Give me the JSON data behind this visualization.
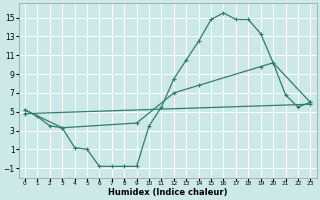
{
  "bg_color": "#cde8e8",
  "grid_color": "#ffffff",
  "line_color": "#2e7d6e",
  "xlabel": "Humidex (Indice chaleur)",
  "xlim": [
    -0.5,
    23.5
  ],
  "ylim": [
    -2,
    16.5
  ],
  "yticks": [
    -1,
    1,
    3,
    5,
    7,
    9,
    11,
    13,
    15
  ],
  "xticks": [
    0,
    1,
    2,
    3,
    4,
    5,
    6,
    7,
    8,
    9,
    10,
    11,
    12,
    13,
    14,
    15,
    16,
    17,
    18,
    19,
    20,
    21,
    22,
    23
  ],
  "line1_x": [
    0,
    1,
    2,
    3,
    4,
    5,
    6,
    7,
    8,
    9,
    10,
    11,
    12,
    13,
    14,
    15,
    16,
    17,
    18,
    19,
    20,
    21,
    22,
    23
  ],
  "line1_y": [
    5.2,
    4.5,
    3.5,
    3.3,
    1.2,
    1.0,
    -0.8,
    -0.8,
    -0.8,
    -0.8,
    3.5,
    5.5,
    8.5,
    10.5,
    12.5,
    14.8,
    15.5,
    14.8,
    14.8,
    13.3,
    10.2,
    6.8,
    5.5,
    6.0
  ],
  "line2_x": [
    0,
    3,
    9,
    12,
    14,
    19,
    20,
    23
  ],
  "line2_y": [
    5.2,
    3.3,
    3.8,
    7.0,
    7.8,
    9.8,
    10.2,
    6.0
  ],
  "line3_x": [
    0,
    23
  ],
  "line3_y": [
    4.8,
    5.8
  ]
}
